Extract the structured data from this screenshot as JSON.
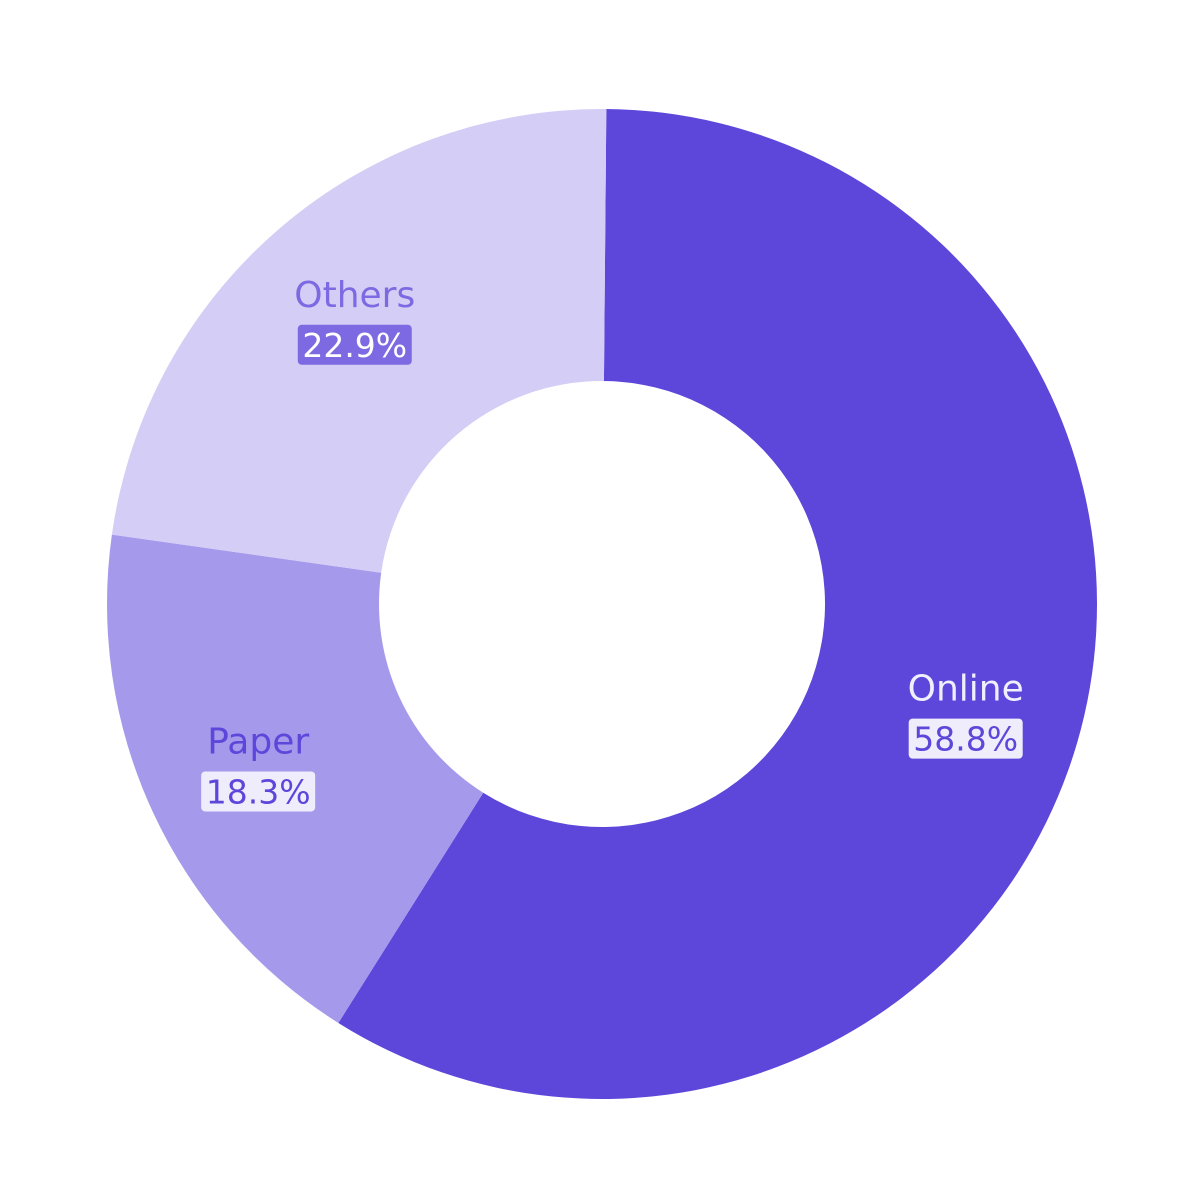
{
  "chart_data": {
    "type": "pie",
    "donut": true,
    "title": "",
    "slices": [
      {
        "label": "Online",
        "value": 58.8,
        "display": "58.8%",
        "color": "#5d47db",
        "label_color": "#f1eefe",
        "badge_color": "#efedfb",
        "badge_text_color": "#5d47db"
      },
      {
        "label": "Paper",
        "value": 18.3,
        "display": "18.3%",
        "color": "#a599eb",
        "label_color": "#5d47db",
        "badge_color": "#efedfb",
        "badge_text_color": "#5d47db"
      },
      {
        "label": "Others",
        "value": 22.9,
        "display": "22.9%",
        "color": "#d4cdf5",
        "label_color": "#7d6ae2",
        "badge_color": "#7d6ae2",
        "badge_text_color": "#ffffff"
      }
    ],
    "legend": "none"
  }
}
